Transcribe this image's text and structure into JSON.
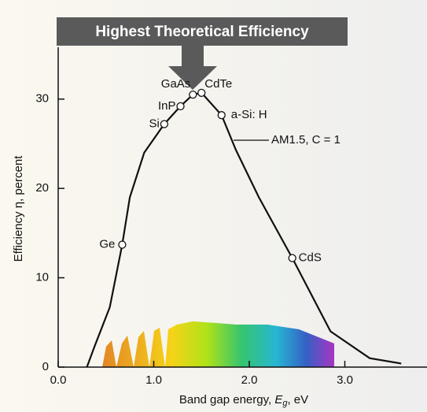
{
  "chart_data": {
    "type": "line",
    "title": "Highest Theoretical Efficiency",
    "x_label": [
      "Band gap energy, ",
      "E",
      "g",
      ", eV"
    ],
    "y_label": "Efficiency η, percent",
    "x": [
      0.3,
      0.38,
      0.54,
      0.67,
      0.75,
      0.9,
      1.11,
      1.28,
      1.41,
      1.5,
      1.71,
      1.86,
      2.1,
      2.45,
      2.85,
      3.26,
      3.59
    ],
    "series": [
      {
        "name": "AM1.5, C = 1",
        "color": "#111111",
        "values": [
          0,
          2.3,
          6.7,
          13.7,
          19,
          24,
          27.2,
          29.2,
          30.5,
          30.7,
          28.2,
          24.3,
          19,
          12.2,
          4,
          1,
          0.4
        ]
      }
    ],
    "markers": [
      {
        "label": "Ge",
        "x": 0.67,
        "y": 13.7
      },
      {
        "label": "Si",
        "x": 1.11,
        "y": 27.2
      },
      {
        "label": "InP",
        "x": 1.28,
        "y": 29.2
      },
      {
        "label": "GaAs",
        "x": 1.41,
        "y": 30.5
      },
      {
        "label": "CdTe",
        "x": 1.5,
        "y": 30.7
      },
      {
        "label": "a-Si: H",
        "x": 1.71,
        "y": 28.2
      },
      {
        "label": "CdS",
        "x": 2.45,
        "y": 12.2
      }
    ],
    "xlim": [
      0,
      3.86
    ],
    "ylim": [
      0,
      35.8
    ],
    "xticks": [
      {
        "value": 0,
        "label": "0.0"
      },
      {
        "value": 1,
        "label": "1.0"
      },
      {
        "value": 2,
        "label": "2.0"
      },
      {
        "value": 3,
        "label": "3.0"
      }
    ],
    "yticks": [
      0,
      10,
      20,
      30
    ]
  }
}
